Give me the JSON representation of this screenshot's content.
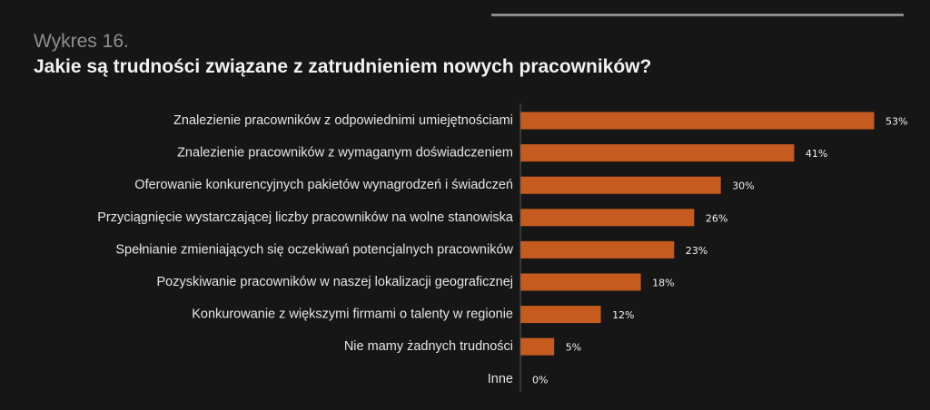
{
  "header": {
    "eyebrow": "Wykres 16.",
    "title": "Jakie są trudności związane z zatrudnieniem nowych pracowników?"
  },
  "colors": {
    "background": "#161616",
    "bar": "#c65b20",
    "axis": "#5a5a5a",
    "top_rule": "#8a8a8a",
    "label_text": "#e6e6e6",
    "title_text": "#f2f2f2",
    "eyebrow_text": "#8e8e8e"
  },
  "chart_data": {
    "type": "bar",
    "orientation": "horizontal",
    "title": "Jakie są trudności związane z zatrudnieniem nowych pracowników?",
    "xlabel": "",
    "ylabel": "",
    "categories": [
      "Znalezienie pracowników z odpowiednimi umiejętnościami",
      "Znalezienie pracowników z wymaganym doświadczeniem",
      "Oferowanie konkurencyjnych pakietów wynagrodzeń i świadczeń",
      "Przyciągnięcie wystarczającej liczby pracowników na wolne stanowiska",
      "Spełnianie zmieniających się oczekiwań potencjalnych pracowników",
      "Pozyskiwanie pracowników w naszej lokalizacji geograficznej",
      "Konkurowanie z większymi firmami o talenty w regionie",
      "Nie mamy żadnych trudności",
      "Inne"
    ],
    "values": [
      53,
      41,
      30,
      26,
      23,
      18,
      12,
      5,
      0
    ],
    "value_labels": [
      "53%",
      "41%",
      "30%",
      "26%",
      "23%",
      "18%",
      "12%",
      "5%",
      "0%"
    ],
    "unit": "%",
    "xlim": [
      0,
      100
    ],
    "grid": false,
    "legend": "none"
  }
}
